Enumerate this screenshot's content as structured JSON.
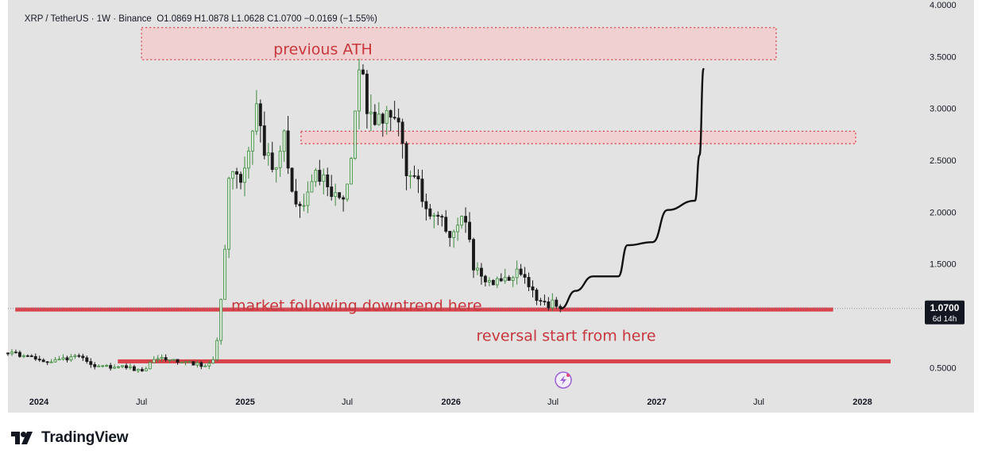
{
  "header": {
    "symbol": "XRP / TetherUS",
    "interval": "1W",
    "exchange": "Binance",
    "open": "O1.0869",
    "high": "H1.0878",
    "low": "L1.0628",
    "close": "C1.0700",
    "change": "−0.0169 (−1.55%)"
  },
  "price_badge": {
    "price": "1.0700",
    "countdown": "6d 14h"
  },
  "footer": {
    "brand": "TradingView"
  },
  "colors": {
    "background": "#e3e3e3",
    "up": "#3d8b3d",
    "down": "#1a1a1a",
    "annotation": "#d9424b",
    "zone_fill": "#f4c9cb",
    "badge": "#131722"
  },
  "chart_data": {
    "type": "candlestick",
    "series": [
      {
        "name": "XRP / TetherUS",
        "interval": "1W",
        "exchange": "Binance"
      }
    ],
    "yaxis": {
      "ticks": [
        "0.5000",
        "1.0000",
        "1.5000",
        "2.0000",
        "2.5000",
        "3.0000",
        "3.5000",
        "4.0000"
      ],
      "range": [
        0.28,
        4.0
      ]
    },
    "xaxis": {
      "ticks": [
        {
          "label": "2024",
          "date": "2024-01-01",
          "bold": true
        },
        {
          "label": "Jul",
          "date": "2024-07-01",
          "bold": false
        },
        {
          "label": "2025",
          "date": "2025-01-01",
          "bold": true
        },
        {
          "label": "Jul",
          "date": "2025-07-01",
          "bold": false
        },
        {
          "label": "2026",
          "date": "2026-01-01",
          "bold": true
        },
        {
          "label": "Jul",
          "date": "2026-07-01",
          "bold": false
        },
        {
          "label": "2027",
          "date": "2027-01-01",
          "bold": true
        },
        {
          "label": "Jul",
          "date": "2027-07-01",
          "bold": false
        },
        {
          "label": "2028",
          "date": "2028-01-01",
          "bold": true
        }
      ],
      "range": [
        "2023-11-07",
        "2028-04-15"
      ]
    },
    "anchors": [
      [
        "2023-11-07",
        0.64
      ],
      [
        "2023-12-15",
        0.6
      ],
      [
        "2024-01-20",
        0.55
      ],
      [
        "2024-03-10",
        0.62
      ],
      [
        "2024-04-15",
        0.5
      ],
      [
        "2024-06-01",
        0.51
      ],
      [
        "2024-07-05",
        0.46
      ],
      [
        "2024-07-25",
        0.6
      ],
      [
        "2024-09-01",
        0.56
      ],
      [
        "2024-10-25",
        0.52
      ],
      [
        "2024-11-08",
        0.57
      ],
      [
        "2024-11-18",
        1.1
      ],
      [
        "2024-11-28",
        1.85
      ],
      [
        "2024-12-05",
        2.45
      ],
      [
        "2024-12-20",
        2.3
      ],
      [
        "2025-01-10",
        2.55
      ],
      [
        "2025-01-20",
        3.1
      ],
      [
        "2025-02-05",
        2.6
      ],
      [
        "2025-03-01",
        2.35
      ],
      [
        "2025-03-10",
        2.85
      ],
      [
        "2025-03-25",
        2.2
      ],
      [
        "2025-04-10",
        2.05
      ],
      [
        "2025-05-05",
        2.35
      ],
      [
        "2025-05-20",
        2.3
      ],
      [
        "2025-06-20",
        2.1
      ],
      [
        "2025-07-01",
        2.2
      ],
      [
        "2025-07-14",
        2.95
      ],
      [
        "2025-07-21",
        3.45
      ],
      [
        "2025-08-05",
        3.05
      ],
      [
        "2025-08-25",
        2.85
      ],
      [
        "2025-09-20",
        3.0
      ],
      [
        "2025-10-05",
        2.85
      ],
      [
        "2025-10-12",
        2.4
      ],
      [
        "2025-11-01",
        2.3
      ],
      [
        "2025-11-20",
        2.05
      ],
      [
        "2025-12-15",
        1.95
      ],
      [
        "2026-01-05",
        1.75
      ],
      [
        "2026-01-25",
        2.0
      ],
      [
        "2026-02-10",
        1.45
      ],
      [
        "2026-03-05",
        1.35
      ],
      [
        "2026-04-10",
        1.33
      ],
      [
        "2026-05-01",
        1.45
      ],
      [
        "2026-05-20",
        1.25
      ],
      [
        "2026-06-15",
        1.1
      ],
      [
        "2026-07-05",
        1.13
      ],
      [
        "2026-07-15",
        1.07
      ]
    ],
    "projection": [
      [
        "2026-07-15",
        1.07
      ],
      [
        "2026-08-10",
        1.24
      ],
      [
        "2026-09-10",
        1.38
      ],
      [
        "2026-10-25",
        1.38
      ],
      [
        "2026-11-10",
        1.68
      ],
      [
        "2026-12-25",
        1.71
      ],
      [
        "2027-01-20",
        2.02
      ],
      [
        "2027-03-10",
        2.11
      ],
      [
        "2027-03-18",
        2.55
      ],
      [
        "2027-03-25",
        3.38
      ]
    ],
    "zones": [
      {
        "label": "previous ATH",
        "from": "2024-07-01",
        "to": "2027-08-01",
        "low": 3.47,
        "high": 3.78
      },
      {
        "label": "",
        "from": "2025-04-10",
        "to": "2027-12-20",
        "low": 2.66,
        "high": 2.78
      }
    ],
    "lines": [
      {
        "label": "market following downtrend here",
        "price": 1.06,
        "from": "2023-11-20",
        "to": "2027-11-10"
      },
      {
        "label": "",
        "price": 0.56,
        "from": "2024-05-20",
        "to": "2028-02-20"
      }
    ],
    "annotations": [
      {
        "text": "previous ATH",
        "date": "2025-02-20",
        "price": 3.52
      },
      {
        "text": "market following downtrend here",
        "date": "2024-12-07",
        "price": 1.05
      },
      {
        "text": "reversal start from here",
        "date": "2026-02-15",
        "price": 0.76
      }
    ],
    "current_price": 1.07
  }
}
